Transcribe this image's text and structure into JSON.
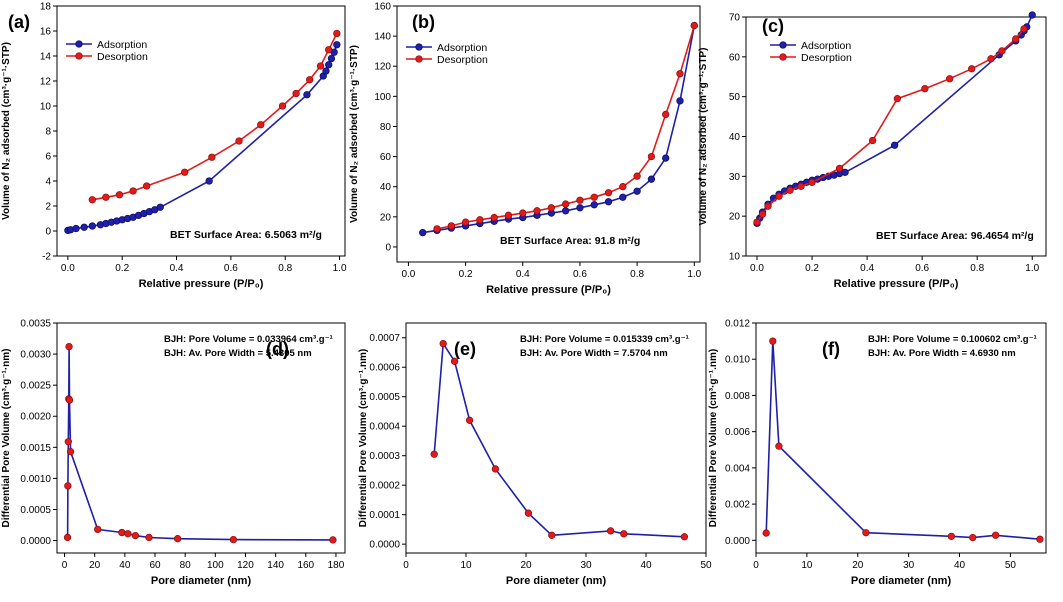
{
  "colors": {
    "adsorption": "#1f1fa8",
    "desorption": "#e11b1b",
    "marker_edge": "#8a0d0d",
    "axis": "#000000"
  },
  "chart_data": [
    {
      "id": "a",
      "panel_label": "(a)",
      "type": "line",
      "xlabel": "Relative pressure (P/P₀)",
      "ylabel": "Volume of N₂ adsorbed (cm³·g⁻¹·STP)",
      "xlim": [
        -0.04,
        1.02
      ],
      "ylim": [
        -2,
        18
      ],
      "xticks": [
        0.0,
        0.2,
        0.4,
        0.6,
        0.8,
        1.0
      ],
      "xtick_labels": [
        "0.0",
        "0.2",
        "0.4",
        "0.6",
        "0.8",
        "1.0"
      ],
      "yticks": [
        -2,
        0,
        2,
        4,
        6,
        8,
        10,
        12,
        14,
        16,
        18
      ],
      "ytick_labels": [
        "-2",
        "0",
        "2",
        "4",
        "6",
        "8",
        "10",
        "12",
        "14",
        "16",
        "18"
      ],
      "legend": [
        "Adsorption",
        "Desorption"
      ],
      "annotation": "BET Surface Area: 6.5063 m²/g",
      "series": [
        {
          "name": "Adsorption",
          "marker": "blue",
          "x": [
            0.0,
            0.01,
            0.03,
            0.06,
            0.09,
            0.12,
            0.14,
            0.16,
            0.18,
            0.2,
            0.22,
            0.24,
            0.26,
            0.28,
            0.3,
            0.32,
            0.34,
            0.52,
            0.88,
            0.94,
            0.95,
            0.96,
            0.97,
            0.98,
            0.99
          ],
          "y": [
            0.05,
            0.1,
            0.2,
            0.3,
            0.4,
            0.5,
            0.6,
            0.7,
            0.8,
            0.9,
            1.0,
            1.1,
            1.25,
            1.4,
            1.55,
            1.7,
            1.9,
            4.0,
            10.9,
            12.4,
            12.8,
            13.3,
            13.8,
            14.3,
            14.9
          ]
        },
        {
          "name": "Desorption",
          "marker": "red",
          "x": [
            0.09,
            0.14,
            0.19,
            0.24,
            0.29,
            0.43,
            0.53,
            0.63,
            0.71,
            0.79,
            0.84,
            0.89,
            0.93,
            0.96,
            0.99
          ],
          "y": [
            2.5,
            2.7,
            2.9,
            3.2,
            3.6,
            4.7,
            5.9,
            7.2,
            8.5,
            10.0,
            11.0,
            12.1,
            13.2,
            14.5,
            15.8
          ]
        }
      ]
    },
    {
      "id": "b",
      "panel_label": "(b)",
      "type": "line",
      "xlabel": "Relative pressure (P/P₀)",
      "ylabel": "Volume of N₂ adsorbed (cm³·g⁻¹·STP)",
      "xlim": [
        -0.04,
        1.02
      ],
      "ylim": [
        -10,
        160
      ],
      "xticks": [
        0.0,
        0.2,
        0.4,
        0.6,
        0.8,
        1.0
      ],
      "xtick_labels": [
        "0.0",
        "0.2",
        "0.4",
        "0.6",
        "0.8",
        "1.0"
      ],
      "yticks": [
        0,
        20,
        40,
        60,
        80,
        100,
        120,
        140,
        160
      ],
      "ytick_labels": [
        "0",
        "20",
        "40",
        "60",
        "80",
        "100",
        "120",
        "140",
        "160"
      ],
      "legend": [
        "Adsorption",
        "Desorption"
      ],
      "annotation": "BET Surface Area: 91.8 m²/g",
      "series": [
        {
          "name": "Adsorption",
          "marker": "blue",
          "x": [
            0.05,
            0.1,
            0.15,
            0.2,
            0.25,
            0.3,
            0.35,
            0.4,
            0.45,
            0.5,
            0.55,
            0.6,
            0.65,
            0.7,
            0.75,
            0.8,
            0.85,
            0.9,
            0.95,
            1.0
          ],
          "y": [
            9.5,
            11,
            12.5,
            14,
            15.5,
            17,
            18.5,
            19.5,
            21,
            22.5,
            24,
            26,
            28,
            30,
            33,
            37,
            45,
            59,
            97,
            147
          ]
        },
        {
          "name": "Desorption",
          "marker": "red",
          "x": [
            0.1,
            0.15,
            0.2,
            0.25,
            0.3,
            0.35,
            0.4,
            0.45,
            0.5,
            0.55,
            0.6,
            0.65,
            0.7,
            0.75,
            0.8,
            0.85,
            0.9,
            0.95,
            1.0
          ],
          "y": [
            12,
            14,
            16.5,
            18,
            19.5,
            21,
            22.5,
            24,
            26,
            28.5,
            31,
            33,
            36,
            40,
            47,
            60,
            88,
            115,
            147
          ]
        }
      ]
    },
    {
      "id": "c",
      "panel_label": "(c)",
      "type": "line",
      "xlabel": "Relative pressure (P/P₀)",
      "ylabel": "Volume of N₂ adsorbed (cm³·g⁻¹·STP)",
      "xlim": [
        -0.04,
        1.05
      ],
      "ylim": [
        10,
        70
      ],
      "xticks": [
        0.0,
        0.2,
        0.4,
        0.6,
        0.8,
        1.0
      ],
      "xtick_labels": [
        "0.0",
        "0.2",
        "0.4",
        "0.6",
        "0.8",
        "1.0"
      ],
      "yticks": [
        10,
        20,
        30,
        40,
        50,
        60,
        70
      ],
      "ytick_labels": [
        "10",
        "20",
        "30",
        "40",
        "50",
        "60",
        "70"
      ],
      "legend": [
        "Adsorption",
        "Desorption"
      ],
      "annotation": "BET Surface Area: 96.4654 m²/g",
      "series": [
        {
          "name": "Adsorption",
          "marker": "blue",
          "x": [
            0.0,
            0.01,
            0.02,
            0.04,
            0.06,
            0.08,
            0.1,
            0.12,
            0.14,
            0.16,
            0.18,
            0.2,
            0.22,
            0.24,
            0.26,
            0.28,
            0.3,
            0.32,
            0.5,
            0.88,
            0.94,
            0.96,
            0.97,
            0.98,
            1.0
          ],
          "y": [
            18.2,
            19.5,
            21,
            23,
            24.5,
            25.5,
            26.3,
            27,
            27.5,
            28,
            28.5,
            29,
            29.3,
            29.7,
            30,
            30.3,
            30.7,
            31,
            37.8,
            60.5,
            64,
            65.5,
            66.5,
            67.5,
            70.5
          ]
        },
        {
          "name": "Desorption",
          "marker": "red",
          "x": [
            0.0,
            0.02,
            0.04,
            0.08,
            0.12,
            0.16,
            0.2,
            0.3,
            0.42,
            0.51,
            0.61,
            0.7,
            0.78,
            0.85,
            0.89,
            0.94,
            0.97
          ],
          "y": [
            18.5,
            20.5,
            22.5,
            25,
            26.5,
            27.5,
            28.5,
            32,
            39,
            49.5,
            52,
            54.5,
            57,
            59.5,
            61.5,
            64.5,
            67
          ]
        }
      ]
    },
    {
      "id": "d",
      "panel_label": "(d)",
      "type": "line",
      "xlabel": "Pore diameter (nm)",
      "ylabel": "Differential Pore Volume (cm³·g⁻¹·nm)",
      "xlim": [
        -5,
        186
      ],
      "ylim": [
        -0.0002,
        0.0035
      ],
      "xticks": [
        0,
        20,
        40,
        60,
        80,
        100,
        120,
        140,
        160,
        180
      ],
      "xtick_labels": [
        "0",
        "20",
        "40",
        "60",
        "80",
        "100",
        "120",
        "140",
        "160",
        "180"
      ],
      "yticks": [
        0,
        0.0005,
        0.001,
        0.0015,
        0.002,
        0.0025,
        0.003,
        0.0035
      ],
      "ytick_labels": [
        "0.0000",
        "0.0005",
        "0.0010",
        "0.0015",
        "0.0020",
        "0.0025",
        "0.0030",
        "0.0035"
      ],
      "annotation_lines": [
        "BJH: Pore Volume = 0.033964 cm³.g⁻¹",
        "BJH: Av. Pore Width =  5.4305 nm"
      ],
      "series": [
        {
          "name": "BJH",
          "marker": "red",
          "x": [
            2.0,
            2.2,
            2.5,
            2.8,
            3.0,
            3.3,
            4.0,
            22,
            38,
            42,
            47,
            56,
            75,
            112,
            178
          ],
          "y": [
            5e-05,
            0.00088,
            0.00159,
            0.00228,
            0.00312,
            0.00226,
            0.00143,
            0.00018,
            0.00013,
            0.00011,
            8e-05,
            5e-05,
            3e-05,
            1.5e-05,
            1e-05
          ]
        }
      ]
    },
    {
      "id": "e",
      "panel_label": "(e)",
      "type": "line",
      "xlabel": "Pore diameter (nm)",
      "ylabel": "Differential Pore Volume (cm³·g⁻¹.nm)",
      "xlim": [
        0,
        50
      ],
      "ylim": [
        -3e-05,
        0.00075
      ],
      "xticks": [
        0,
        10,
        20,
        30,
        40,
        50
      ],
      "xtick_labels": [
        "0",
        "10",
        "20",
        "30",
        "40",
        "50"
      ],
      "yticks": [
        0,
        0.0001,
        0.0002,
        0.0003,
        0.0004,
        0.0005,
        0.0006,
        0.0007
      ],
      "ytick_labels": [
        "0.0000",
        "0.0001",
        "0.0002",
        "0.0003",
        "0.0004",
        "0.0005",
        "0.0006",
        "0.0007"
      ],
      "annotation_lines": [
        "BJH: Pore Volume = 0.015339  cm³.g⁻¹",
        "BJH: Av. Pore Width = 7.5704  nm"
      ],
      "series": [
        {
          "name": "BJH",
          "marker": "red",
          "x": [
            4.7,
            6.2,
            8.1,
            10.6,
            14.9,
            20.4,
            24.3,
            34.1,
            36.3,
            46.4
          ],
          "y": [
            0.000305,
            0.00068,
            0.00062,
            0.00042,
            0.000255,
            0.000105,
            3e-05,
            4.5e-05,
            3.5e-05,
            2.5e-05
          ]
        }
      ]
    },
    {
      "id": "f",
      "panel_label": "(f)",
      "type": "line",
      "xlabel": "Pore diameter (nm)",
      "ylabel": "Differential Pore Volume (cm³·g⁻¹.nm)",
      "xlim": [
        0,
        57
      ],
      "ylim": [
        -0.0007,
        0.012
      ],
      "xticks": [
        0,
        10,
        20,
        30,
        40,
        50
      ],
      "xtick_labels": [
        "0",
        "10",
        "20",
        "30",
        "40",
        "50"
      ],
      "yticks": [
        0,
        0.002,
        0.004,
        0.006,
        0.008,
        0.01,
        0.012
      ],
      "ytick_labels": [
        "0.000",
        "0.002",
        "0.004",
        "0.006",
        "0.008",
        "0.010",
        "0.012"
      ],
      "annotation_lines": [
        "BJH: Pore Volume = 0.100602 cm³.g⁻¹",
        "BJH: Av. Pore Width = 4.6930 nm"
      ],
      "series": [
        {
          "name": "BJH",
          "marker": "red",
          "x": [
            2.0,
            3.3,
            4.5,
            21.6,
            38.4,
            42.6,
            47.1,
            55.8
          ],
          "y": [
            0.0004,
            0.011,
            0.0052,
            0.00042,
            0.00022,
            0.00015,
            0.00028,
            6e-05
          ]
        }
      ]
    }
  ]
}
